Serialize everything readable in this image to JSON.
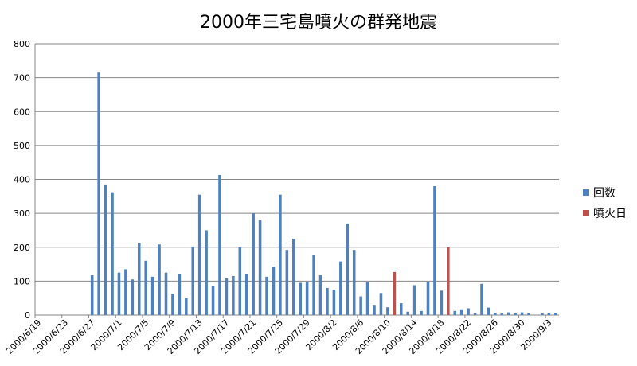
{
  "chart_data": {
    "type": "bar",
    "title": "2000年三宅島噴火の群発地震",
    "xlabel": "",
    "ylabel": "",
    "ylim": [
      0,
      800
    ],
    "yticks": [
      0,
      100,
      200,
      300,
      400,
      500,
      600,
      700,
      800
    ],
    "grid": true,
    "legend_position": "right",
    "colors": {
      "回数": "#4f81bd",
      "噴火日": "#c0504d"
    },
    "x_start": "2000/6/19",
    "x_tick_labels": [
      "2000/6/19",
      "2000/6/23",
      "2000/6/27",
      "2000/7/1",
      "2000/7/5",
      "2000/7/9",
      "2000/7/13",
      "2000/7/17",
      "2000/7/21",
      "2000/7/25",
      "2000/7/29",
      "2000/8/2",
      "2000/8/6",
      "2000/8/10",
      "2000/8/14",
      "2000/8/18",
      "2000/8/22",
      "2000/8/26",
      "2000/8/30",
      "2000/9/3"
    ],
    "series": [
      {
        "name": "回数",
        "values": [
          0,
          0,
          0,
          0,
          0,
          0,
          0,
          0,
          118,
          715,
          385,
          362,
          125,
          135,
          105,
          212,
          160,
          113,
          208,
          125,
          63,
          122,
          50,
          202,
          355,
          250,
          85,
          413,
          108,
          115,
          200,
          122,
          300,
          280,
          113,
          142,
          355,
          192,
          225,
          95,
          97,
          178,
          118,
          80,
          75,
          158,
          270,
          192,
          55,
          97,
          30,
          65,
          23,
          0,
          35,
          10,
          88,
          12,
          98,
          380,
          72,
          0,
          12,
          17,
          20,
          5,
          92,
          22,
          5,
          5,
          8,
          5,
          8,
          5,
          0,
          5,
          5,
          5
        ]
      },
      {
        "name": "噴火日",
        "values": [
          0,
          0,
          0,
          0,
          0,
          0,
          0,
          0,
          0,
          0,
          0,
          0,
          0,
          0,
          0,
          0,
          0,
          0,
          0,
          0,
          0,
          0,
          0,
          0,
          0,
          0,
          0,
          0,
          0,
          0,
          0,
          0,
          0,
          0,
          0,
          0,
          0,
          0,
          0,
          0,
          0,
          0,
          0,
          0,
          0,
          0,
          0,
          0,
          0,
          0,
          0,
          0,
          0,
          127,
          0,
          0,
          0,
          0,
          0,
          0,
          0,
          200,
          0,
          0,
          0,
          0,
          0,
          0,
          0,
          0,
          0,
          0,
          0,
          0,
          0,
          0,
          0,
          0
        ]
      }
    ]
  }
}
